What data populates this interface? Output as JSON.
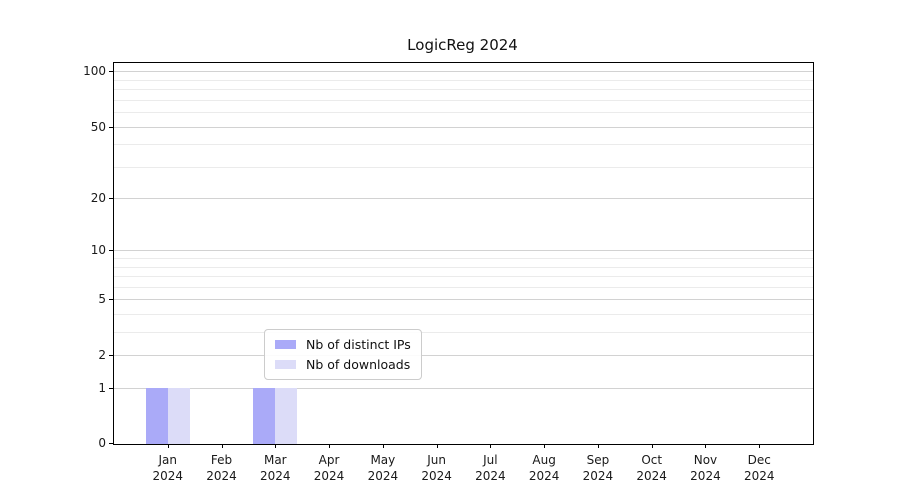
{
  "title": "LogicReg 2024",
  "chart_data": {
    "type": "bar",
    "title": "LogicReg 2024",
    "y_scale": "log1p",
    "months": [
      "Jan",
      "Feb",
      "Mar",
      "Apr",
      "May",
      "Jun",
      "Jul",
      "Aug",
      "Sep",
      "Oct",
      "Nov",
      "Dec"
    ],
    "year": "2024",
    "categories": [
      "Jan 2024",
      "Feb 2024",
      "Mar 2024",
      "Apr 2024",
      "May 2024",
      "Jun 2024",
      "Jul 2024",
      "Aug 2024",
      "Sep 2024",
      "Oct 2024",
      "Nov 2024",
      "Dec 2024"
    ],
    "series": [
      {
        "name": "Nb of distinct IPs",
        "color": "#aaaaf8",
        "values": [
          1,
          0,
          1,
          0,
          0,
          0,
          0,
          0,
          0,
          0,
          0,
          0
        ]
      },
      {
        "name": "Nb of downloads",
        "color": "#dcdcf8",
        "values": [
          1,
          0,
          1,
          0,
          0,
          0,
          0,
          0,
          0,
          0,
          0,
          0
        ]
      }
    ],
    "y_ticks": [
      0,
      1,
      2,
      5,
      10,
      20,
      50,
      100
    ],
    "y_minor_gridlines": [
      3,
      4,
      6,
      7,
      8,
      9,
      30,
      40,
      60,
      70,
      80,
      90
    ],
    "ylim": [
      0,
      111
    ],
    "xlabel": "",
    "ylabel": "",
    "grid": "horizontal",
    "legend_position": "lower center"
  },
  "colors": {
    "axis": "#000000",
    "grid_major": "#d2d2d2",
    "grid_minor": "#ebebeb",
    "text": "#1a1a1a",
    "legend_border": "#cccccc",
    "background": "#ffffff"
  }
}
